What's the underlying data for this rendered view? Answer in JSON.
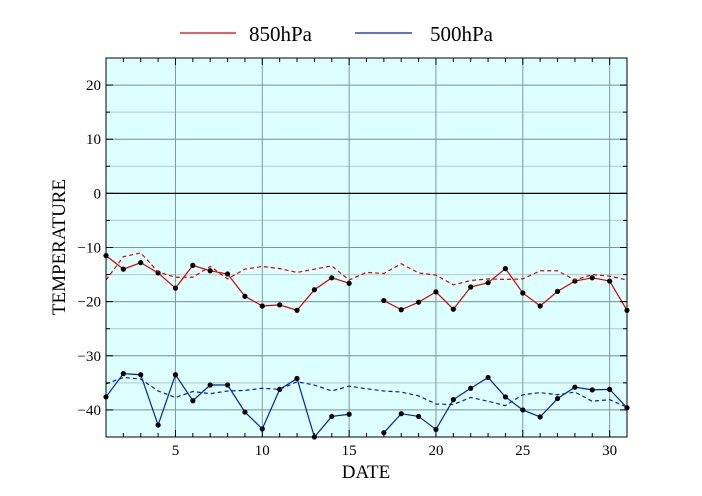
{
  "chart_data": {
    "type": "line",
    "xlabel": "DATE",
    "ylabel": "TEMPERATURE",
    "xlim": [
      1,
      31
    ],
    "ylim": [
      -45,
      25
    ],
    "xticks": [
      5,
      10,
      15,
      20,
      25,
      30
    ],
    "xtick_labels": [
      "5",
      "10",
      "15",
      "20",
      "25",
      "30"
    ],
    "yticks": [
      20,
      10,
      0,
      -10,
      -20,
      -30,
      -40
    ],
    "ytick_labels": [
      "20",
      "10",
      "0",
      "−10",
      "−20",
      "−30",
      "−40"
    ],
    "grid": true,
    "zero_line": true,
    "plot_background": "#ddffff",
    "legend_position": "top",
    "legend": [
      "850hPa",
      "500hPa"
    ],
    "x": [
      1,
      2,
      3,
      4,
      5,
      6,
      7,
      8,
      9,
      10,
      11,
      12,
      13,
      14,
      15,
      16,
      17,
      18,
      19,
      20,
      21,
      22,
      23,
      24,
      25,
      26,
      27,
      28,
      29,
      30,
      31
    ],
    "series": [
      {
        "name": "850hPa",
        "color": "#dd0000",
        "style": "solid",
        "markers": true,
        "values": [
          -11.5,
          -14,
          -12.8,
          -14.7,
          -17.5,
          -13.3,
          -14.3,
          -14.9,
          -19,
          -20.8,
          -20.6,
          -21.6,
          -17.8,
          -15.6,
          -16.6,
          null,
          -19.8,
          -21.5,
          -20.1,
          -18.2,
          -21.4,
          -17.3,
          -16.5,
          -13.9,
          -18.4,
          -20.8,
          -18.1,
          -16.2,
          -15.6,
          -16.2,
          -21.6
        ]
      },
      {
        "name": "850hPa normal",
        "color": "#dd0000",
        "style": "dashed",
        "markers": false,
        "values": [
          -16,
          -11.7,
          -11,
          -14.5,
          -15.5,
          -15.5,
          -13.5,
          -15.8,
          -14,
          -13.5,
          -13.9,
          -14.6,
          -14,
          -13.4,
          -16,
          -14.6,
          -14.8,
          -13,
          -14.7,
          -15.1,
          -16.9,
          -16.1,
          -15.8,
          -15.9,
          -15.8,
          -14.3,
          -14.3,
          -16,
          -15,
          -15.3,
          -16
        ]
      },
      {
        "name": "500hPa",
        "color": "#0020b0",
        "style": "solid",
        "markers": true,
        "values": [
          -37.6,
          -33.3,
          -33.5,
          -42.8,
          -33.5,
          -38.3,
          -35.4,
          -35.4,
          -40.4,
          -43.5,
          -36.2,
          -34.2,
          -45,
          -41.2,
          -40.8,
          null,
          -44.2,
          -40.7,
          -41.2,
          -43.6,
          -38.1,
          -36,
          -34,
          -37.6,
          -40,
          -41.3,
          -37.9,
          -35.8,
          -36.3,
          -36.2,
          -39.6
        ]
      },
      {
        "name": "500hPa normal",
        "color": "#0020b0",
        "style": "dashed",
        "markers": false,
        "values": [
          -35.2,
          -34,
          -34.3,
          -36.5,
          -37.7,
          -36.6,
          -37,
          -36.5,
          -36.4,
          -36,
          -36.2,
          -34.8,
          -35.4,
          -36.5,
          -35.6,
          -36.1,
          -36.5,
          -36.7,
          -37.4,
          -38.9,
          -39,
          -37.7,
          -38.4,
          -39.2,
          -37.2,
          -36.8,
          -37.2,
          -36.7,
          -38.4,
          -38.1,
          -39.5
        ]
      }
    ]
  }
}
